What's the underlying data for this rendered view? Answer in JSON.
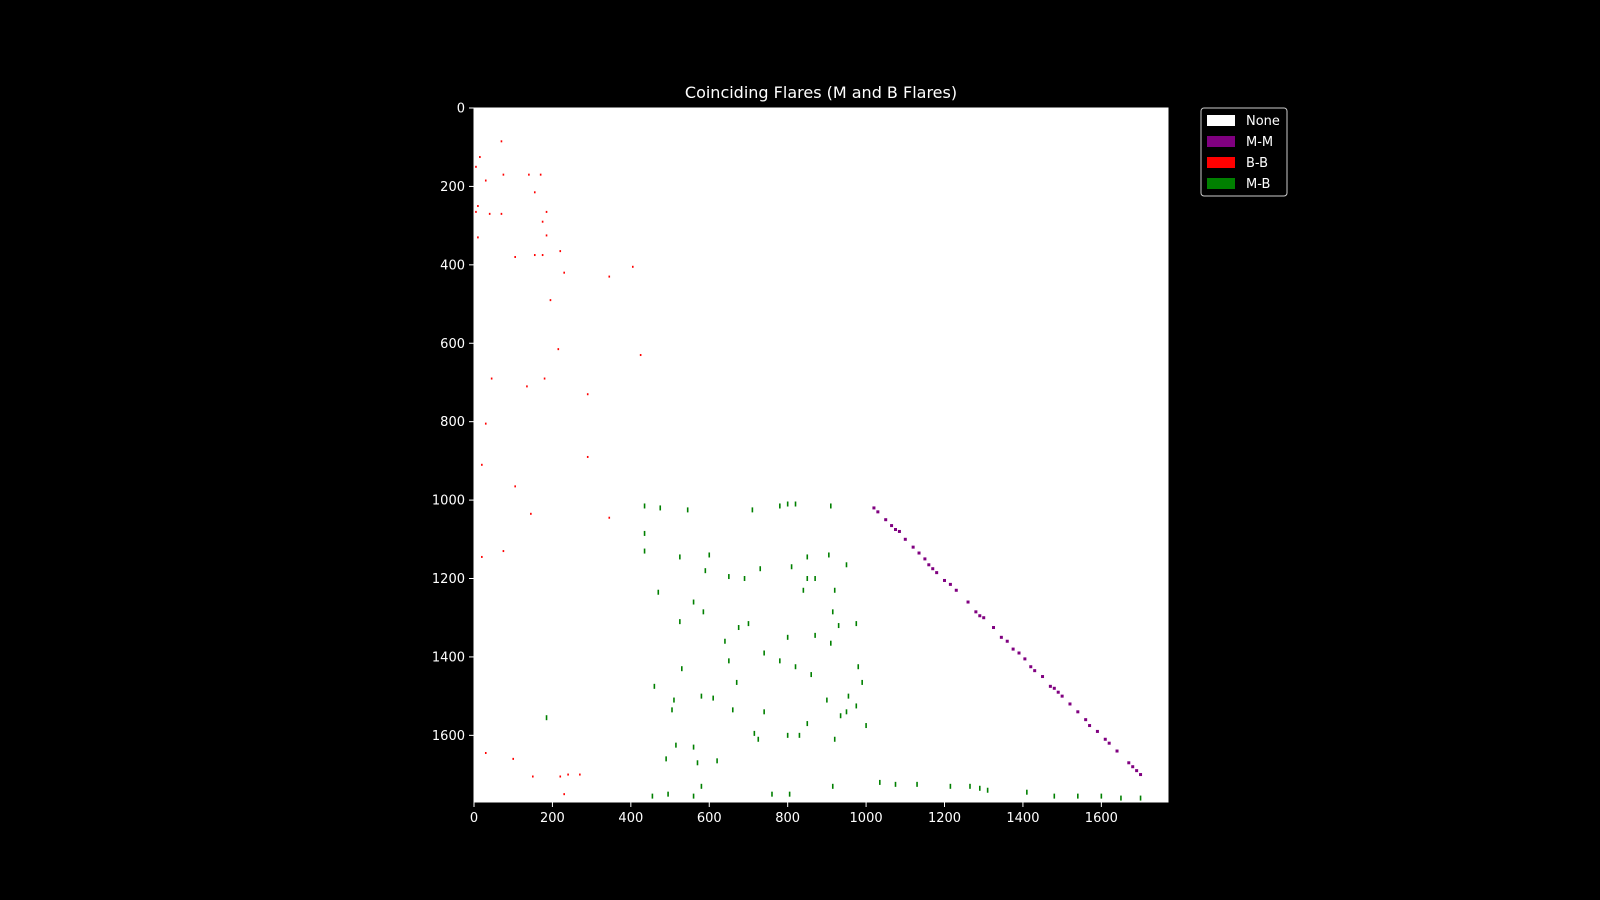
{
  "chart_data": {
    "type": "heatmap",
    "title": "Coinciding Flares (M and B Flares)",
    "xlabel": "",
    "ylabel": "",
    "xlim": [
      0,
      1770
    ],
    "ylim": [
      1770,
      0
    ],
    "x_ticks": [
      0,
      200,
      400,
      600,
      800,
      1000,
      1200,
      1400,
      1600
    ],
    "y_ticks": [
      0,
      200,
      400,
      600,
      800,
      1000,
      1200,
      1400,
      1600
    ],
    "grid": false,
    "legend_position": "upper-right-outside",
    "legend": [
      {
        "label": "None",
        "color": "#ffffff"
      },
      {
        "label": "M-M",
        "color": "#800080"
      },
      {
        "label": "B-B",
        "color": "#ff0000"
      },
      {
        "label": "M-B",
        "color": "#008000"
      }
    ],
    "cells": {
      "M-M": [
        [
          1020,
          1020
        ],
        [
          1030,
          1030
        ],
        [
          1050,
          1050
        ],
        [
          1065,
          1065
        ],
        [
          1075,
          1075
        ],
        [
          1085,
          1080
        ],
        [
          1100,
          1100
        ],
        [
          1120,
          1120
        ],
        [
          1135,
          1135
        ],
        [
          1150,
          1150
        ],
        [
          1160,
          1165
        ],
        [
          1170,
          1175
        ],
        [
          1180,
          1185
        ],
        [
          1200,
          1205
        ],
        [
          1215,
          1215
        ],
        [
          1230,
          1230
        ],
        [
          1260,
          1260
        ],
        [
          1280,
          1285
        ],
        [
          1290,
          1295
        ],
        [
          1300,
          1300
        ],
        [
          1325,
          1325
        ],
        [
          1345,
          1350
        ],
        [
          1360,
          1360
        ],
        [
          1375,
          1380
        ],
        [
          1390,
          1390
        ],
        [
          1405,
          1405
        ],
        [
          1420,
          1425
        ],
        [
          1430,
          1435
        ],
        [
          1450,
          1450
        ],
        [
          1470,
          1475
        ],
        [
          1480,
          1480
        ],
        [
          1490,
          1490
        ],
        [
          1500,
          1500
        ],
        [
          1520,
          1520
        ],
        [
          1540,
          1540
        ],
        [
          1560,
          1560
        ],
        [
          1570,
          1575
        ],
        [
          1590,
          1590
        ],
        [
          1610,
          1610
        ],
        [
          1620,
          1620
        ],
        [
          1640,
          1640
        ],
        [
          1670,
          1670
        ],
        [
          1680,
          1680
        ],
        [
          1690,
          1690
        ],
        [
          1700,
          1700
        ]
      ],
      "B-B": [
        [
          70,
          85
        ],
        [
          15,
          125
        ],
        [
          5,
          150
        ],
        [
          30,
          185
        ],
        [
          75,
          170
        ],
        [
          140,
          170
        ],
        [
          170,
          170
        ],
        [
          155,
          215
        ],
        [
          10,
          250
        ],
        [
          5,
          265
        ],
        [
          40,
          270
        ],
        [
          70,
          270
        ],
        [
          185,
          265
        ],
        [
          175,
          290
        ],
        [
          185,
          325
        ],
        [
          10,
          330
        ],
        [
          220,
          365
        ],
        [
          105,
          380
        ],
        [
          155,
          375
        ],
        [
          175,
          375
        ],
        [
          230,
          420
        ],
        [
          345,
          430
        ],
        [
          405,
          405
        ],
        [
          195,
          490
        ],
        [
          215,
          615
        ],
        [
          425,
          630
        ],
        [
          45,
          690
        ],
        [
          180,
          690
        ],
        [
          135,
          710
        ],
        [
          290,
          730
        ],
        [
          30,
          805
        ],
        [
          20,
          910
        ],
        [
          290,
          890
        ],
        [
          105,
          965
        ],
        [
          145,
          1035
        ],
        [
          345,
          1045
        ],
        [
          20,
          1145
        ],
        [
          75,
          1130
        ],
        [
          100,
          1660
        ],
        [
          30,
          1645
        ],
        [
          150,
          1705
        ],
        [
          220,
          1705
        ],
        [
          240,
          1700
        ],
        [
          270,
          1700
        ],
        [
          230,
          1750
        ]
      ],
      "M-B": [
        [
          435,
          1015
        ],
        [
          475,
          1020
        ],
        [
          545,
          1025
        ],
        [
          710,
          1025
        ],
        [
          780,
          1015
        ],
        [
          800,
          1010
        ],
        [
          820,
          1010
        ],
        [
          910,
          1015
        ],
        [
          435,
          1085
        ],
        [
          435,
          1130
        ],
        [
          525,
          1145
        ],
        [
          600,
          1140
        ],
        [
          850,
          1145
        ],
        [
          905,
          1140
        ],
        [
          950,
          1165
        ],
        [
          590,
          1180
        ],
        [
          730,
          1175
        ],
        [
          810,
          1170
        ],
        [
          650,
          1195
        ],
        [
          690,
          1200
        ],
        [
          850,
          1200
        ],
        [
          870,
          1200
        ],
        [
          920,
          1230
        ],
        [
          840,
          1230
        ],
        [
          470,
          1235
        ],
        [
          560,
          1260
        ],
        [
          585,
          1285
        ],
        [
          915,
          1285
        ],
        [
          525,
          1310
        ],
        [
          675,
          1325
        ],
        [
          700,
          1315
        ],
        [
          930,
          1320
        ],
        [
          975,
          1315
        ],
        [
          800,
          1350
        ],
        [
          640,
          1360
        ],
        [
          910,
          1365
        ],
        [
          870,
          1345
        ],
        [
          740,
          1390
        ],
        [
          780,
          1410
        ],
        [
          650,
          1410
        ],
        [
          820,
          1425
        ],
        [
          980,
          1425
        ],
        [
          530,
          1430
        ],
        [
          860,
          1445
        ],
        [
          670,
          1465
        ],
        [
          990,
          1465
        ],
        [
          460,
          1475
        ],
        [
          580,
          1500
        ],
        [
          955,
          1500
        ],
        [
          505,
          1535
        ],
        [
          510,
          1510
        ],
        [
          610,
          1505
        ],
        [
          660,
          1535
        ],
        [
          740,
          1540
        ],
        [
          900,
          1510
        ],
        [
          935,
          1550
        ],
        [
          950,
          1540
        ],
        [
          975,
          1525
        ],
        [
          850,
          1570
        ],
        [
          1000,
          1575
        ],
        [
          185,
          1555
        ],
        [
          715,
          1595
        ],
        [
          800,
          1600
        ],
        [
          830,
          1600
        ],
        [
          725,
          1610
        ],
        [
          920,
          1610
        ],
        [
          515,
          1625
        ],
        [
          560,
          1630
        ],
        [
          490,
          1660
        ],
        [
          570,
          1670
        ],
        [
          620,
          1665
        ],
        [
          580,
          1730
        ],
        [
          915,
          1730
        ],
        [
          1075,
          1725
        ],
        [
          1035,
          1720
        ],
        [
          1130,
          1725
        ],
        [
          1215,
          1730
        ],
        [
          1265,
          1730
        ],
        [
          1290,
          1735
        ],
        [
          1310,
          1740
        ],
        [
          1410,
          1745
        ],
        [
          1480,
          1755
        ],
        [
          1540,
          1755
        ],
        [
          1600,
          1755
        ],
        [
          1650,
          1760
        ],
        [
          1700,
          1760
        ],
        [
          495,
          1750
        ],
        [
          455,
          1755
        ],
        [
          560,
          1755
        ],
        [
          760,
          1750
        ],
        [
          805,
          1750
        ]
      ]
    }
  }
}
